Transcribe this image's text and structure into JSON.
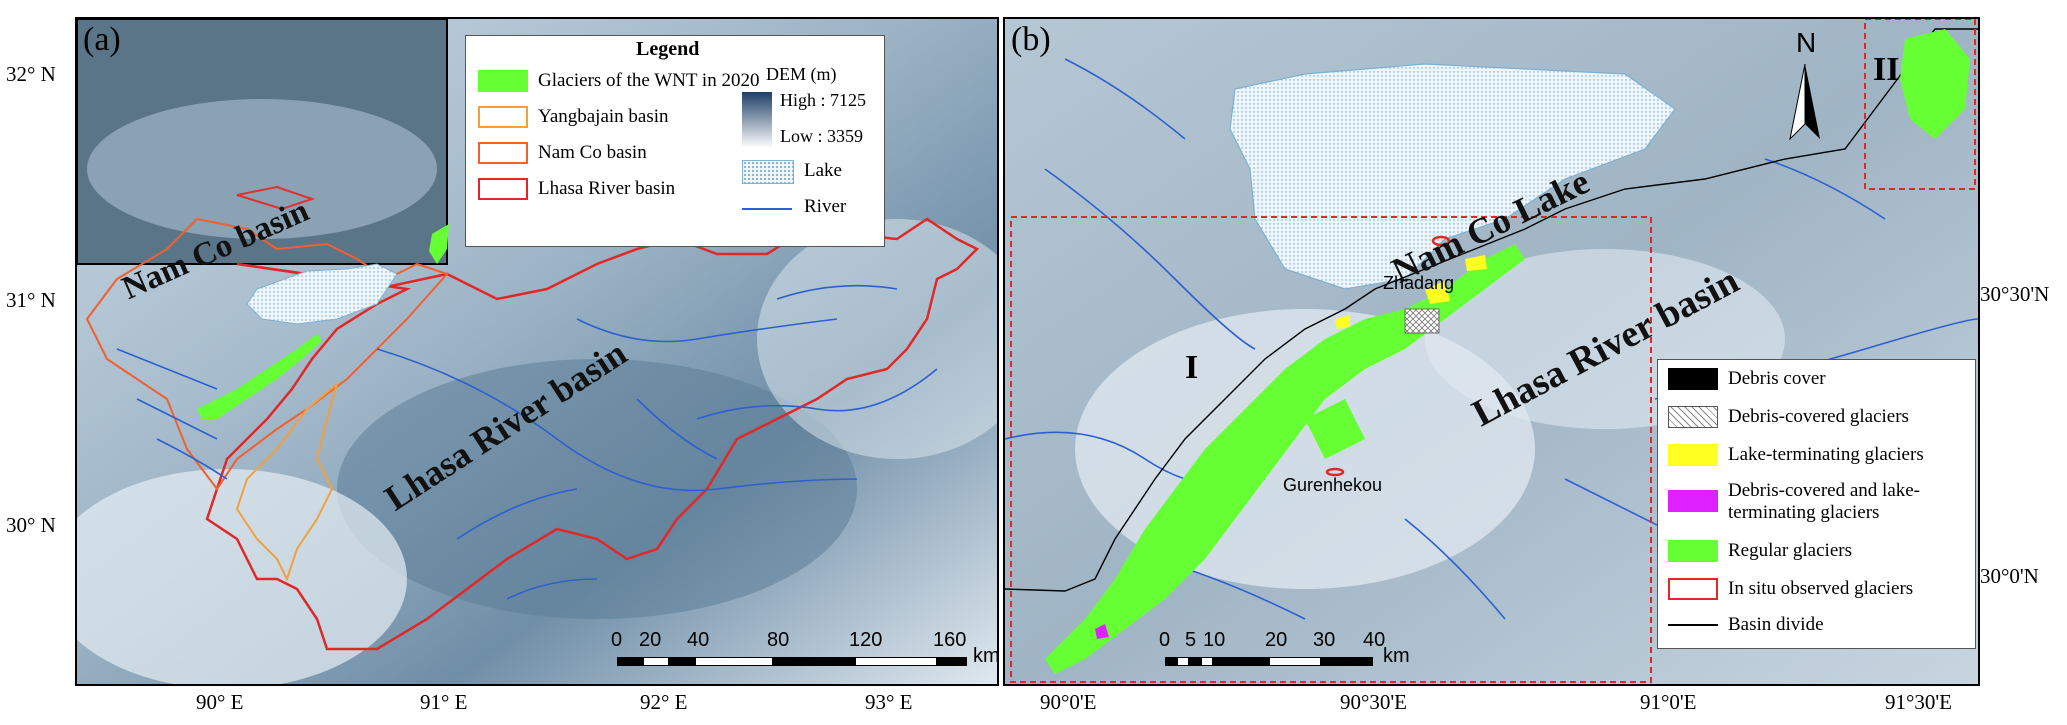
{
  "panel_a": {
    "label": "(a)",
    "lat_ticks": [
      "32° N",
      "31° N",
      "30° N"
    ],
    "lon_ticks": [
      "90° E",
      "91° E",
      "92° E",
      "93° E"
    ],
    "legend": {
      "title": "Legend",
      "items": [
        {
          "label": "Glaciers of the WNT in 2020",
          "color": "#66ff33",
          "kind": "fill"
        },
        {
          "label": "Yangbajain basin",
          "color": "#f0a040",
          "kind": "outline"
        },
        {
          "label": "Nam Co basin",
          "color": "#f06030",
          "kind": "outline"
        },
        {
          "label": "Lhasa River basin",
          "color": "#e02828",
          "kind": "outline"
        }
      ],
      "dem_title": "DEM (m)",
      "dem_high": "High : 7125",
      "dem_low": "Low : 3359",
      "lake": "Lake",
      "river": "River"
    },
    "labels": {
      "namco": "Nam Co basin",
      "lhasa": "Lhasa River basin"
    },
    "scale": {
      "numbers": [
        "0",
        "20",
        "40",
        "80",
        "120",
        "160"
      ],
      "unit": "km"
    }
  },
  "panel_b": {
    "label": "(b)",
    "north": "N",
    "lat_ticks": [
      "30°30'N",
      "30°0'N"
    ],
    "lon_ticks": [
      "90°0'E",
      "90°30'E",
      "91°0'E",
      "91°30'E"
    ],
    "region_I": "I",
    "region_II": "II",
    "labels": {
      "lake": "Nam Co Lake",
      "basin": "Lhasa River basin",
      "zhadang": "Zhadang",
      "gurenhekou": "Gurenhekou"
    },
    "legend": {
      "items": [
        {
          "label": "Debris cover",
          "color": "#000000",
          "kind": "fill"
        },
        {
          "label": "Debris-covered glaciers",
          "color": "#bbbbbb",
          "kind": "hatch"
        },
        {
          "label": "Lake-terminating glaciers",
          "color": "#ffff22",
          "kind": "fill"
        },
        {
          "label": "Debris-covered and lake-terminating glaciers",
          "color": "#dd22ff",
          "kind": "fill"
        },
        {
          "label": "Regular glaciers",
          "color": "#66ff33",
          "kind": "fill"
        },
        {
          "label": "In situ observed glaciers",
          "color": "#e02828",
          "kind": "outline"
        },
        {
          "label": "Basin divide",
          "color": "#000000",
          "kind": "line"
        }
      ]
    },
    "scale": {
      "numbers": [
        "0",
        "5",
        "10",
        "20",
        "30",
        "40"
      ],
      "unit": "km"
    }
  }
}
